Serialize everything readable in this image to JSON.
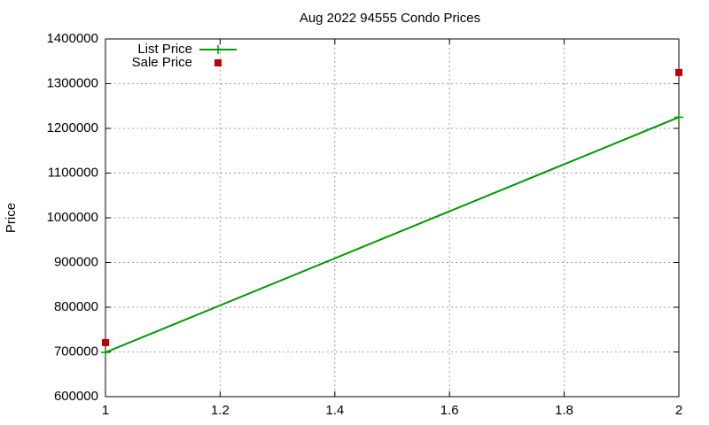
{
  "chart_data": {
    "type": "line",
    "title": "Aug 2022 94555 Condo Prices",
    "y_label": "Price",
    "x": [
      1,
      2
    ],
    "series": [
      {
        "name": "List Price",
        "color": "#009900",
        "style": "linespoints",
        "values": [
          699000,
          1225000
        ]
      },
      {
        "name": "Sale Price",
        "color": "#bb0000",
        "style": "points",
        "values": [
          721000,
          1325000
        ]
      }
    ],
    "xlim": [
      1,
      2
    ],
    "xticks": [
      1,
      1.2,
      1.4,
      1.6,
      1.8,
      2
    ],
    "ylim": [
      600000,
      1400000
    ],
    "yticks": [
      600000,
      700000,
      800000,
      900000,
      1000000,
      1100000,
      1200000,
      1300000,
      1400000
    ],
    "grid": true,
    "legend": "top-left"
  }
}
